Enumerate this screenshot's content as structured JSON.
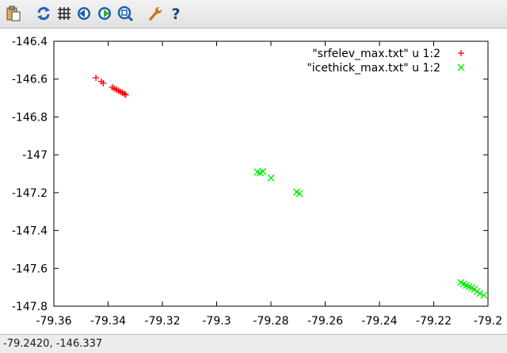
{
  "toolbar": {
    "buttons": [
      {
        "name": "copy-clipboard-icon"
      },
      {
        "name": "replot-icon"
      },
      {
        "name": "grid-icon"
      },
      {
        "name": "previous-zoom-icon"
      },
      {
        "name": "next-zoom-icon"
      },
      {
        "name": "autoscale-icon"
      },
      {
        "name": "settings-icon"
      },
      {
        "name": "help-icon"
      }
    ]
  },
  "status": {
    "coords": "-79.2420, -146.337"
  },
  "chart_data": {
    "type": "scatter",
    "xlim": [
      -79.36,
      -79.2
    ],
    "ylim": [
      -147.8,
      -146.4
    ],
    "xticks": [
      -79.36,
      -79.34,
      -79.32,
      -79.3,
      -79.28,
      -79.26,
      -79.24,
      -79.22,
      -79.2
    ],
    "xtick_labels": [
      "-79.36",
      "-79.34",
      "-79.32",
      "-79.3",
      "-79.28",
      "-79.26",
      "-79.24",
      "-79.22",
      "-79.2"
    ],
    "yticks": [
      -146.4,
      -146.6,
      -146.8,
      -147,
      -147.2,
      -147.4,
      -147.6,
      -147.8
    ],
    "ytick_labels": [
      "-146.4",
      "-146.6",
      "-146.8",
      "-147",
      "-147.2",
      "-147.4",
      "-147.6",
      "-147.8"
    ],
    "grid": false,
    "legend_position": "top-right",
    "series": [
      {
        "name": "\"srfelev_max.txt\" u 1:2",
        "marker": "plus",
        "color": "#ff0000",
        "points": [
          [
            -79.3445,
            -146.593
          ],
          [
            -79.3425,
            -146.612
          ],
          [
            -79.3418,
            -146.622
          ],
          [
            -79.3385,
            -146.643
          ],
          [
            -79.3378,
            -146.65
          ],
          [
            -79.337,
            -146.655
          ],
          [
            -79.3362,
            -146.661
          ],
          [
            -79.3355,
            -146.667
          ],
          [
            -79.3348,
            -146.672
          ],
          [
            -79.334,
            -146.678
          ],
          [
            -79.3335,
            -146.683
          ]
        ]
      },
      {
        "name": "\"icethick_max.txt\" u 1:2",
        "marker": "cross",
        "color": "#00ee00",
        "points": [
          [
            -79.285,
            -147.092
          ],
          [
            -79.284,
            -147.096
          ],
          [
            -79.283,
            -147.088
          ],
          [
            -79.28,
            -147.122
          ],
          [
            -79.2705,
            -147.197
          ],
          [
            -79.2695,
            -147.205
          ],
          [
            -79.21,
            -147.675
          ],
          [
            -79.209,
            -147.683
          ],
          [
            -79.208,
            -147.69
          ],
          [
            -79.207,
            -147.697
          ],
          [
            -79.206,
            -147.703
          ],
          [
            -79.205,
            -147.71
          ],
          [
            -79.204,
            -147.722
          ],
          [
            -79.203,
            -147.733
          ],
          [
            -79.2015,
            -147.742
          ]
        ]
      }
    ]
  }
}
